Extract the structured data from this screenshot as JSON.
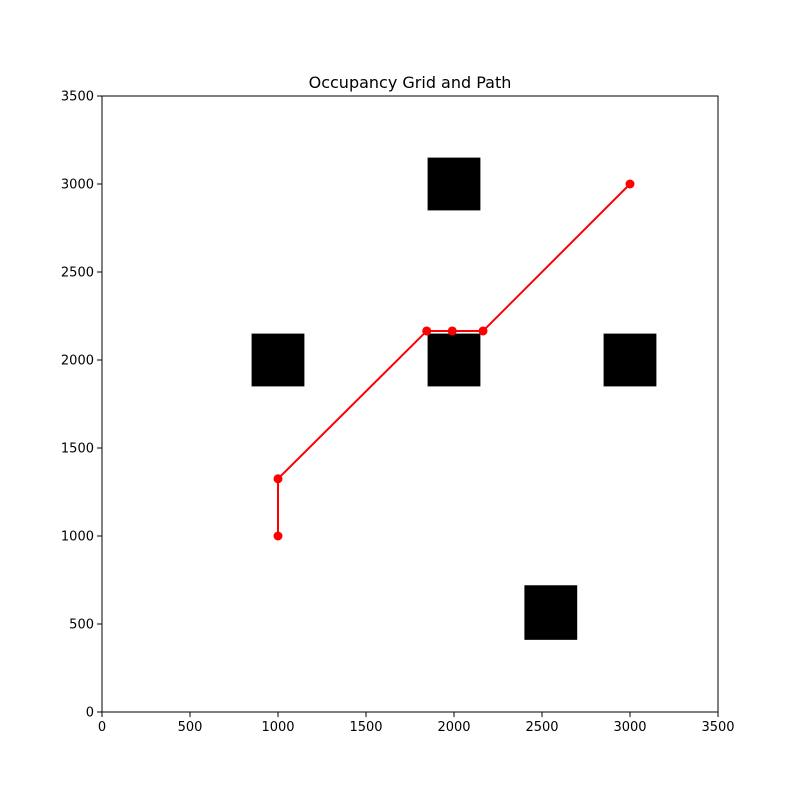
{
  "chart_data": {
    "type": "scatter",
    "title": "Occupancy Grid and Path",
    "xlabel": "",
    "ylabel": "",
    "xlim": [
      0,
      3500
    ],
    "ylim": [
      0,
      3500
    ],
    "xticks": [
      "0",
      "500",
      "1000",
      "1500",
      "2000",
      "2500",
      "3000",
      "3500"
    ],
    "yticks": [
      "0",
      "500",
      "1000",
      "1500",
      "2000",
      "2500",
      "3000",
      "3500"
    ],
    "grid": false,
    "obstacles": [
      {
        "x": [
          1850,
          2150
        ],
        "y": [
          2850,
          3150
        ]
      },
      {
        "x": [
          850,
          1150
        ],
        "y": [
          1850,
          2150
        ]
      },
      {
        "x": [
          1850,
          2150
        ],
        "y": [
          1850,
          2150
        ]
      },
      {
        "x": [
          2850,
          3150
        ],
        "y": [
          1850,
          2150
        ]
      },
      {
        "x": [
          2400,
          2700
        ],
        "y": [
          410,
          720
        ]
      }
    ],
    "path": {
      "x": [
        1000,
        1000,
        1845,
        1990,
        2165,
        3000
      ],
      "y": [
        1000,
        1325,
        2165,
        2165,
        2165,
        3000
      ],
      "color": "#ff0000"
    },
    "obstacle_color": "#000000"
  }
}
